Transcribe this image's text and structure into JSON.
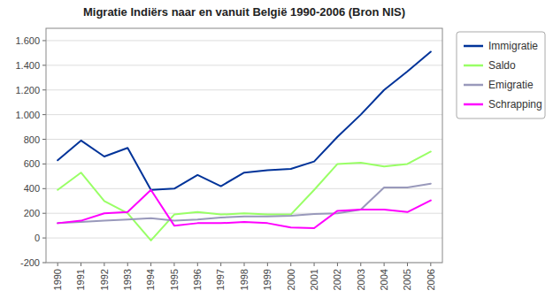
{
  "chart_data": {
    "type": "line",
    "title": "Migratie Indiërs naar en vanuit België 1990-2006 (Bron NIS)",
    "x": [
      1990,
      1991,
      1992,
      1993,
      1994,
      1995,
      1996,
      1997,
      1998,
      1999,
      2000,
      2001,
      2002,
      2003,
      2004,
      2005,
      2006
    ],
    "series": [
      {
        "name": "Immigratie",
        "color": "#003399",
        "values": [
          630,
          790,
          660,
          730,
          390,
          400,
          510,
          420,
          530,
          550,
          560,
          620,
          820,
          1000,
          1200,
          1350,
          1510
        ]
      },
      {
        "name": "Saldo",
        "color": "#99ff66",
        "values": [
          390,
          530,
          300,
          200,
          -20,
          190,
          210,
          190,
          200,
          190,
          190,
          390,
          600,
          610,
          580,
          600,
          700
        ]
      },
      {
        "name": "Emigratie",
        "color": "#9999bb",
        "values": [
          120,
          130,
          140,
          150,
          160,
          140,
          150,
          165,
          175,
          175,
          180,
          195,
          200,
          230,
          410,
          410,
          440
        ]
      },
      {
        "name": "Schrapping",
        "color": "#ff00ff",
        "values": [
          120,
          140,
          200,
          210,
          390,
          100,
          120,
          120,
          130,
          120,
          85,
          80,
          220,
          230,
          230,
          210,
          305
        ]
      }
    ],
    "xlim": [
      1989.5,
      2006.5
    ],
    "xticks": [
      1990,
      1991,
      1992,
      1993,
      1994,
      1995,
      1996,
      1997,
      1998,
      1999,
      2000,
      2001,
      2002,
      2003,
      2004,
      2005,
      2006
    ],
    "ylim": [
      -200,
      1700
    ],
    "yticks": [
      -200,
      0,
      200,
      400,
      600,
      800,
      {
        "value": 1000,
        "label": "1.000"
      },
      {
        "value": 1200,
        "label": "1.200"
      },
      {
        "value": 1400,
        "label": "1.400"
      },
      {
        "value": 1600,
        "label": "1.600"
      }
    ],
    "grid": true,
    "legend": "right"
  }
}
